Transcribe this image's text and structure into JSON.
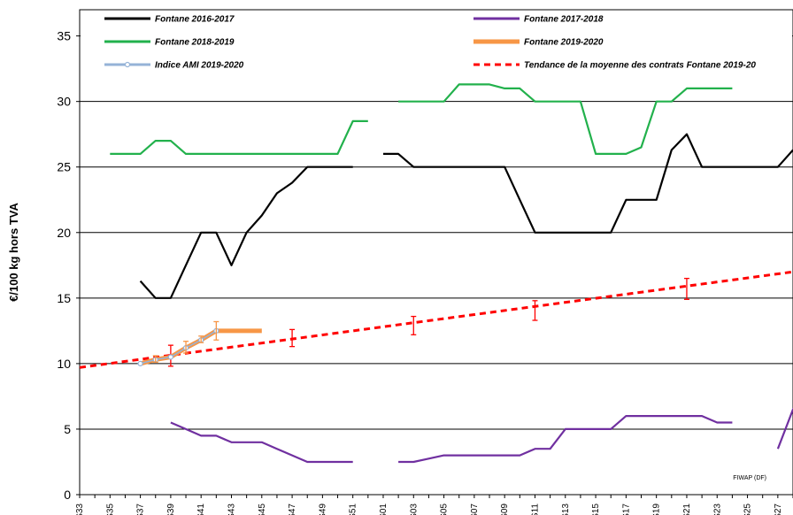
{
  "chart_data": {
    "type": "line",
    "ylabel": "€/100 kg hors TVA",
    "xlabel": "",
    "ylim": [
      0,
      37
    ],
    "yticks": [
      "0",
      "5",
      "10",
      "15",
      "20",
      "25",
      "30",
      "35"
    ],
    "x_range": [
      33,
      80
    ],
    "x_ticks": [
      {
        "x": 33,
        "label": "S33"
      },
      {
        "x": 35,
        "label": "S35"
      },
      {
        "x": 37,
        "label": "S37"
      },
      {
        "x": 39,
        "label": "S39"
      },
      {
        "x": 41,
        "label": "S41"
      },
      {
        "x": 43,
        "label": "S43"
      },
      {
        "x": 45,
        "label": "S45"
      },
      {
        "x": 47,
        "label": "S47"
      },
      {
        "x": 49,
        "label": "S49"
      },
      {
        "x": 51,
        "label": "S51"
      },
      {
        "x": 53,
        "label": "S01"
      },
      {
        "x": 55,
        "label": "S03"
      },
      {
        "x": 57,
        "label": "S05"
      },
      {
        "x": 59,
        "label": "S07"
      },
      {
        "x": 61,
        "label": "S09"
      },
      {
        "x": 63,
        "label": "S11"
      },
      {
        "x": 65,
        "label": "S13"
      },
      {
        "x": 67,
        "label": "S15"
      },
      {
        "x": 69,
        "label": "S17"
      },
      {
        "x": 71,
        "label": "S19"
      },
      {
        "x": 73,
        "label": "S21"
      },
      {
        "x": 75,
        "label": "S23"
      },
      {
        "x": 77,
        "label": "S25"
      },
      {
        "x": 79,
        "label": "S27"
      }
    ],
    "grid": true,
    "legend_position": "top",
    "series": [
      {
        "name": "Fontane 2016-2017",
        "color": "#000000",
        "style": "solid",
        "segments": [
          [
            [
              37,
              16.3
            ],
            [
              38,
              15
            ],
            [
              39,
              15
            ],
            [
              40,
              17.5
            ],
            [
              41,
              20
            ],
            [
              42,
              20
            ],
            [
              43,
              17.5
            ],
            [
              44,
              20
            ],
            [
              45,
              21.3
            ],
            [
              46,
              23
            ],
            [
              47,
              23.8
            ],
            [
              48,
              25
            ],
            [
              49,
              25
            ],
            [
              50,
              25
            ],
            [
              51,
              25
            ]
          ],
          [
            [
              53,
              26
            ],
            [
              54,
              26
            ],
            [
              55,
              25
            ],
            [
              56,
              25
            ],
            [
              57,
              25
            ],
            [
              58,
              25
            ],
            [
              59,
              25
            ],
            [
              60,
              25
            ],
            [
              61,
              25
            ],
            [
              62,
              22.5
            ],
            [
              63,
              20
            ],
            [
              64,
              20
            ],
            [
              65,
              20
            ],
            [
              66,
              20
            ],
            [
              67,
              20
            ],
            [
              68,
              20
            ],
            [
              69,
              22.5
            ],
            [
              70,
              22.5
            ],
            [
              71,
              22.5
            ],
            [
              72,
              26.3
            ],
            [
              73,
              27.5
            ],
            [
              74,
              25
            ],
            [
              75,
              25
            ],
            [
              76,
              25
            ],
            [
              77,
              25
            ],
            [
              78,
              25
            ],
            [
              79,
              25
            ],
            [
              80,
              26.3
            ]
          ]
        ]
      },
      {
        "name": "Fontane 2017-2018",
        "color": "#7030a0",
        "style": "solid",
        "segments": [
          [
            [
              39,
              5.5
            ],
            [
              40,
              5
            ],
            [
              41,
              4.5
            ],
            [
              42,
              4.5
            ],
            [
              43,
              4
            ],
            [
              44,
              4
            ],
            [
              45,
              4
            ],
            [
              46,
              3.5
            ],
            [
              47,
              3
            ],
            [
              48,
              2.5
            ],
            [
              49,
              2.5
            ],
            [
              50,
              2.5
            ],
            [
              51,
              2.5
            ]
          ],
          [
            [
              54,
              2.5
            ],
            [
              55,
              2.5
            ],
            [
              56,
              2.75
            ],
            [
              57,
              3
            ],
            [
              58,
              3
            ],
            [
              59,
              3
            ],
            [
              60,
              3
            ],
            [
              61,
              3
            ],
            [
              62,
              3
            ],
            [
              63,
              3.5
            ],
            [
              64,
              3.5
            ],
            [
              65,
              5
            ],
            [
              66,
              5
            ],
            [
              67,
              5
            ],
            [
              68,
              5
            ],
            [
              69,
              6
            ],
            [
              70,
              6
            ],
            [
              71,
              6
            ],
            [
              72,
              6
            ],
            [
              73,
              6
            ],
            [
              74,
              6
            ],
            [
              75,
              5.5
            ],
            [
              76,
              5.5
            ]
          ],
          [
            [
              79,
              3.5
            ],
            [
              80,
              6.5
            ],
            [
              81,
              8
            ]
          ]
        ]
      },
      {
        "name": "Fontane 2018-2019",
        "color": "#22b14c",
        "style": "solid",
        "segments": [
          [
            [
              35,
              26
            ],
            [
              36,
              26
            ],
            [
              37,
              26
            ],
            [
              38,
              27
            ],
            [
              39,
              27
            ],
            [
              40,
              26
            ],
            [
              41,
              26
            ],
            [
              42,
              26
            ],
            [
              43,
              26
            ],
            [
              44,
              26
            ],
            [
              45,
              26
            ],
            [
              46,
              26
            ],
            [
              47,
              26
            ],
            [
              48,
              26
            ],
            [
              49,
              26
            ],
            [
              50,
              26
            ],
            [
              51,
              28.5
            ],
            [
              52,
              28.5
            ]
          ],
          [
            [
              54,
              30
            ],
            [
              55,
              30
            ],
            [
              56,
              30
            ],
            [
              57,
              30
            ],
            [
              58,
              31.3
            ],
            [
              59,
              31.3
            ],
            [
              60,
              31.3
            ],
            [
              61,
              31
            ],
            [
              62,
              31
            ],
            [
              63,
              30
            ],
            [
              64,
              30
            ],
            [
              65,
              30
            ],
            [
              66,
              30
            ],
            [
              67,
              26
            ],
            [
              68,
              26
            ],
            [
              69,
              26
            ],
            [
              70,
              26.5
            ],
            [
              71,
              30
            ],
            [
              72,
              30
            ],
            [
              73,
              31
            ],
            [
              74,
              31
            ],
            [
              75,
              31
            ],
            [
              76,
              31
            ]
          ]
        ]
      },
      {
        "name": "Fontane 2019-2020",
        "color": "#f79646",
        "style": "thick",
        "segments": [
          [
            [
              37,
              10
            ],
            [
              38,
              10.3
            ],
            [
              39,
              10.5
            ],
            [
              40,
              11.2
            ],
            [
              41,
              11.8
            ],
            [
              42,
              12.5
            ],
            [
              43,
              12.5
            ],
            [
              44,
              12.5
            ],
            [
              45,
              12.5
            ]
          ]
        ]
      },
      {
        "name": "Indice AMI 2019-2020",
        "color": "#95b3d7",
        "style": "markers",
        "segments": [
          [
            [
              37,
              10
            ],
            [
              38,
              10.3
            ],
            [
              39,
              10.5
            ],
            [
              40,
              11.2
            ],
            [
              41,
              11.8
            ],
            [
              42,
              12.5
            ]
          ]
        ],
        "error_bars": [
          {
            "x": 38,
            "low": 10.1,
            "high": 10.6
          },
          {
            "x": 40,
            "low": 10.8,
            "high": 11.7
          },
          {
            "x": 41,
            "low": 11.6,
            "high": 12.1
          },
          {
            "x": 42,
            "low": 11.8,
            "high": 13.2
          }
        ]
      },
      {
        "name": "Tendance de la moyenne des contrats Fontane 2019-20",
        "color": "#ff0000",
        "style": "dashed",
        "segments": [
          [
            [
              33,
              9.7
            ],
            [
              80,
              17
            ]
          ]
        ],
        "error_bars": [
          {
            "x": 39,
            "low": 9.8,
            "high": 11.4
          },
          {
            "x": 47,
            "low": 11.3,
            "high": 12.6
          },
          {
            "x": 55,
            "low": 12.2,
            "high": 13.6
          },
          {
            "x": 63,
            "low": 13.3,
            "high": 14.8
          },
          {
            "x": 73,
            "low": 14.9,
            "high": 16.5
          }
        ]
      }
    ],
    "annotations": [
      "FIWAP (DF)"
    ]
  }
}
